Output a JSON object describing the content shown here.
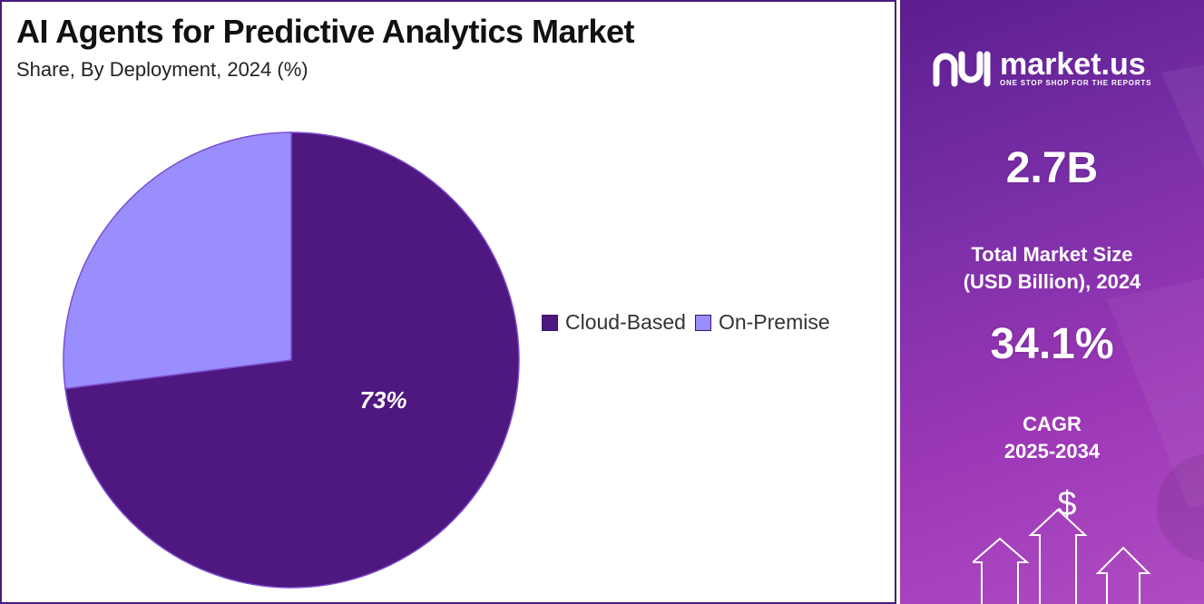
{
  "chart_data": {
    "type": "pie",
    "title": "AI Agents for Predictive Analytics Market",
    "subtitle": "Share, By Deployment, 2024 (%)",
    "categories": [
      "Cloud-Based",
      "On-Premise"
    ],
    "values": [
      73,
      27
    ],
    "value_labels": [
      "73%",
      ""
    ],
    "colors": [
      "#4f1780",
      "#9a8dfc"
    ],
    "legend_position": "right"
  },
  "sidebar": {
    "brand_name": "market.us",
    "brand_tagline": "ONE STOP SHOP FOR THE REPORTS",
    "market_size_value": "2.7B",
    "market_size_label_line1": "Total Market Size",
    "market_size_label_line2": "(USD Billion), 2024",
    "cagr_value": "34.1%",
    "cagr_label_line1": "CAGR",
    "cagr_label_line2": "2025-2034",
    "dollar_symbol": "$",
    "icons": [
      "market-us-logo-icon",
      "dollar-icon",
      "up-arrow-icon"
    ]
  }
}
